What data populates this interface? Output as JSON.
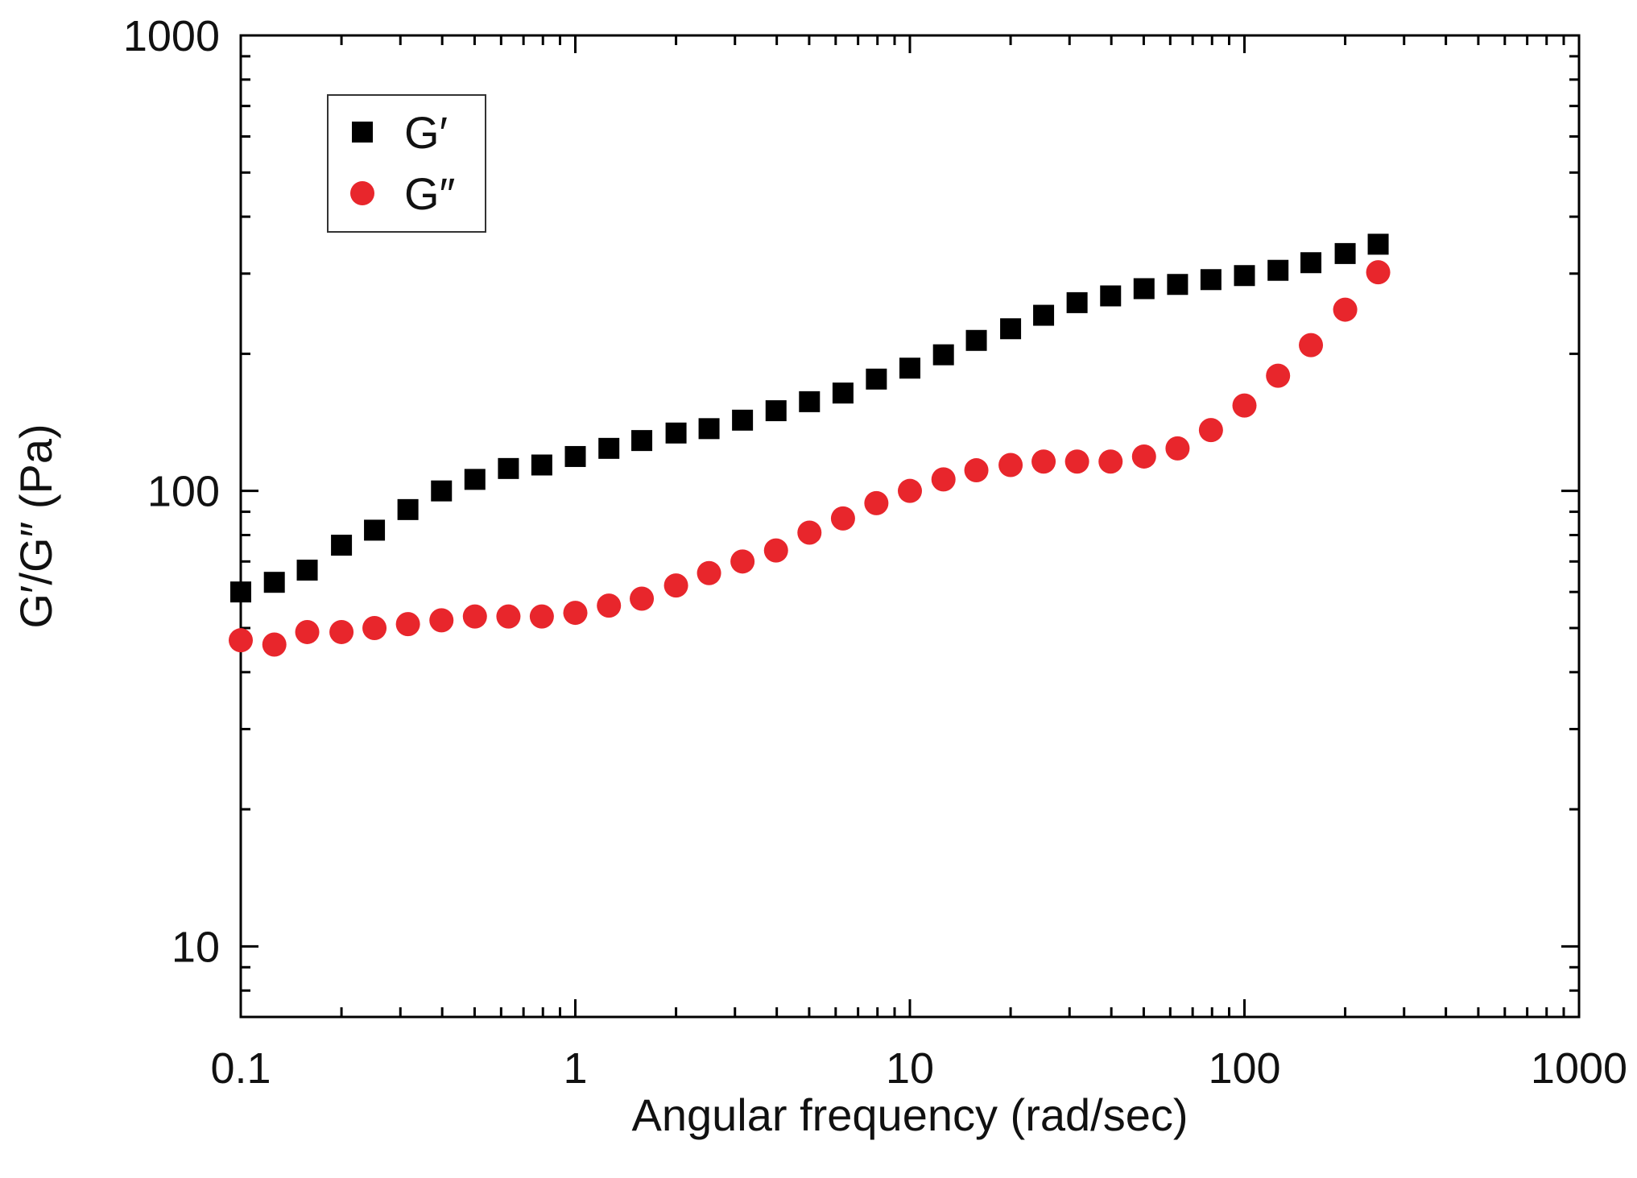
{
  "chart_data": {
    "type": "scatter",
    "title": "",
    "xlabel": "Angular frequency (rad/sec)",
    "ylabel": "G′/G″ (Pa)",
    "xscale": "log",
    "yscale": "log",
    "xlim": [
      0.1,
      1000
    ],
    "ylim": [
      7,
      1000
    ],
    "xticks": [
      0.1,
      1,
      10,
      100,
      1000
    ],
    "xtick_labels": [
      "0.1",
      "1",
      "10",
      "100",
      "1000"
    ],
    "yticks": [
      10,
      100,
      1000
    ],
    "ytick_labels": [
      "10",
      "100",
      "1000"
    ],
    "grid": false,
    "legend_position": "top-left",
    "series": [
      {
        "name": "G′",
        "marker": "square",
        "color": "#000000",
        "x": [
          0.1,
          0.126,
          0.158,
          0.2,
          0.251,
          0.316,
          0.398,
          0.501,
          0.631,
          0.794,
          1.0,
          1.26,
          1.58,
          2.0,
          2.51,
          3.16,
          3.98,
          5.01,
          6.31,
          7.94,
          10.0,
          12.6,
          15.8,
          20.0,
          25.1,
          31.6,
          39.8,
          50.1,
          63.1,
          79.4,
          100,
          126,
          158,
          200,
          251
        ],
        "y": [
          60,
          63,
          67,
          76,
          82,
          91,
          100,
          106,
          112,
          114,
          119,
          124,
          129,
          134,
          137,
          143,
          150,
          157,
          164,
          176,
          186,
          199,
          214,
          227,
          243,
          259,
          268,
          278,
          284,
          291,
          297,
          305,
          317,
          332,
          348
        ]
      },
      {
        "name": "G″",
        "marker": "circle",
        "color": "#e8262c",
        "x": [
          0.1,
          0.126,
          0.158,
          0.2,
          0.251,
          0.316,
          0.398,
          0.501,
          0.631,
          0.794,
          1.0,
          1.26,
          1.58,
          2.0,
          2.51,
          3.16,
          3.98,
          5.01,
          6.31,
          7.94,
          10.0,
          12.6,
          15.8,
          20.0,
          25.1,
          31.6,
          39.8,
          50.1,
          63.1,
          79.4,
          100,
          126,
          158,
          200,
          251
        ],
        "y": [
          47,
          46,
          49,
          49,
          50,
          51,
          52,
          53,
          53,
          53,
          54,
          56,
          58,
          62,
          66,
          70,
          74,
          81,
          87,
          94,
          100,
          106,
          111,
          114,
          116,
          116,
          116,
          119,
          124,
          136,
          154,
          179,
          209,
          250,
          302
        ]
      }
    ]
  }
}
